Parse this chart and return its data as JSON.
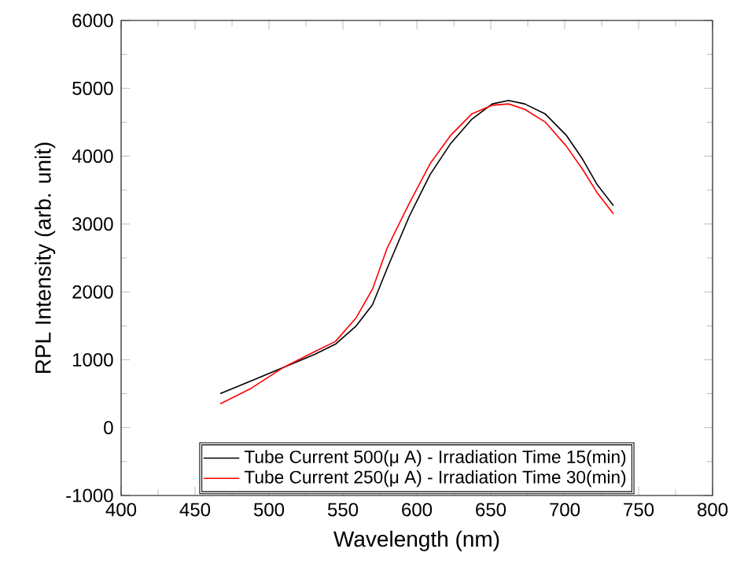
{
  "chart_data": {
    "type": "line",
    "xlabel": "Wavelength (nm)",
    "ylabel": "RPL Intensity (arb. unit)",
    "xlim": [
      400,
      800
    ],
    "xticks": [
      400,
      450,
      500,
      550,
      600,
      650,
      700,
      750,
      800
    ],
    "ylim": [
      -1000,
      6000
    ],
    "yticks": [
      -1000,
      0,
      1000,
      2000,
      3000,
      4000,
      5000,
      6000
    ],
    "legend": "bottom",
    "grid": false,
    "marker": "none",
    "line_style": "solid",
    "series": [
      {
        "name": "Tube Current 500(μ A) - Irradiation Time 15(min)",
        "color": "#000000",
        "x": [
          467,
          488,
          510,
          531,
          545,
          559,
          570,
          580,
          595,
          609,
          623,
          637,
          651,
          662,
          673,
          687,
          701,
          712,
          722,
          733
        ],
        "values": [
          500,
          690,
          890,
          1080,
          1230,
          1500,
          1810,
          2350,
          3120,
          3730,
          4190,
          4540,
          4770,
          4820,
          4770,
          4620,
          4310,
          3960,
          3580,
          3270
        ]
      },
      {
        "name": "Tube Current 250(μ A) - Irradiation Time 30(min)",
        "color": "#ff0000",
        "x": [
          467,
          488,
          510,
          531,
          545,
          559,
          570,
          580,
          595,
          609,
          623,
          637,
          651,
          662,
          673,
          687,
          701,
          712,
          722,
          733
        ],
        "values": [
          350,
          580,
          890,
          1120,
          1270,
          1620,
          2040,
          2650,
          3310,
          3890,
          4310,
          4620,
          4750,
          4770,
          4690,
          4500,
          4150,
          3810,
          3460,
          3150
        ]
      }
    ]
  }
}
